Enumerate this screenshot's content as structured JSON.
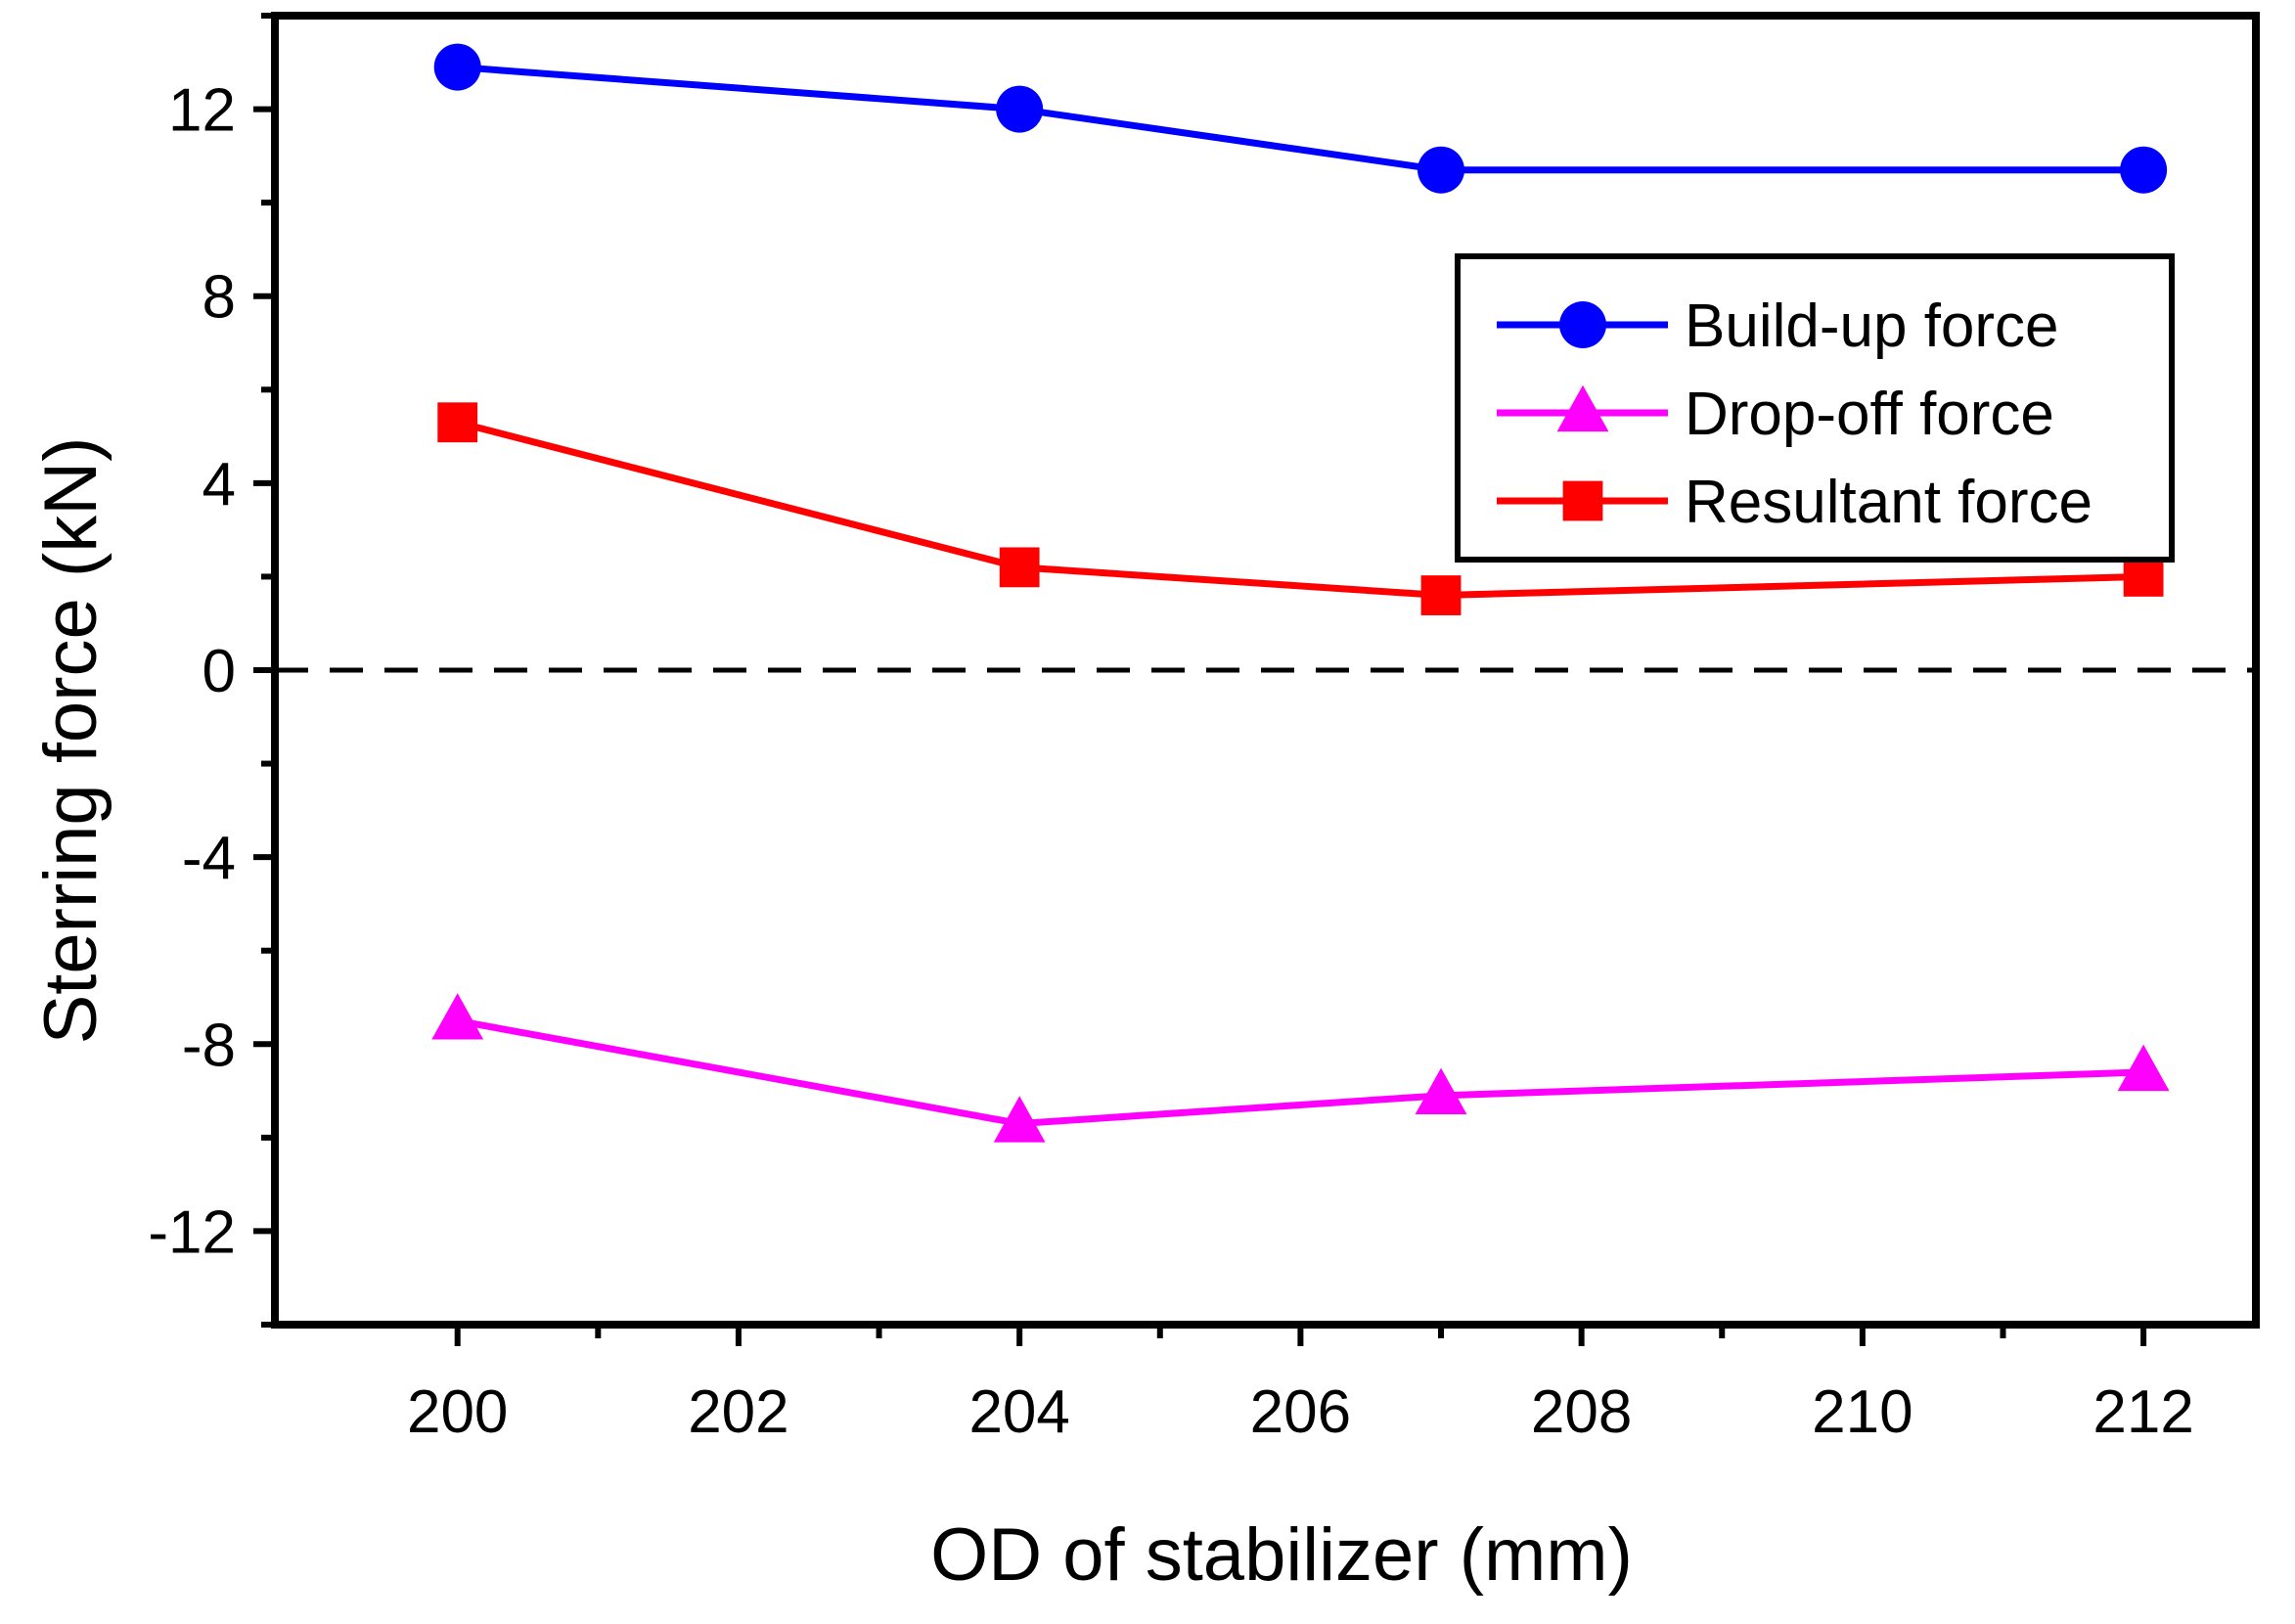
{
  "chart_data": {
    "type": "line",
    "title": "",
    "xlabel": "OD of stabilizer (mm)",
    "ylabel": "Sterring force (kN)",
    "xlim": [
      198.7,
      212.8
    ],
    "ylim": [
      -14,
      14
    ],
    "x_ticks": [
      200,
      202,
      204,
      206,
      208,
      210,
      212
    ],
    "x_tick_labels": [
      "200",
      "202",
      "204",
      "206",
      "208",
      "210",
      "212"
    ],
    "y_ticks": [
      12,
      8,
      4,
      0,
      -4,
      -8,
      -12
    ],
    "y_tick_labels": [
      "12",
      "8",
      "4",
      "0",
      "-4",
      "-8",
      "-12"
    ],
    "reference_line": {
      "y": 0,
      "style": "dashed"
    },
    "legend_position": "top-right",
    "series": [
      {
        "name": "Build-up force",
        "color": "#0000ff",
        "marker": "circle",
        "x": [
          200,
          204,
          207,
          212
        ],
        "values": [
          12.9,
          12.0,
          10.7,
          10.7
        ]
      },
      {
        "name": "Drop-off force",
        "color": "#ff00ff",
        "marker": "triangle",
        "x": [
          200,
          204,
          207,
          212
        ],
        "values": [
          -7.5,
          -9.7,
          -9.1,
          -8.6
        ]
      },
      {
        "name": "Resultant force",
        "color": "#ff0000",
        "marker": "square",
        "x": [
          200,
          204,
          207,
          212
        ],
        "values": [
          5.3,
          2.2,
          1.6,
          2.0
        ]
      }
    ]
  }
}
